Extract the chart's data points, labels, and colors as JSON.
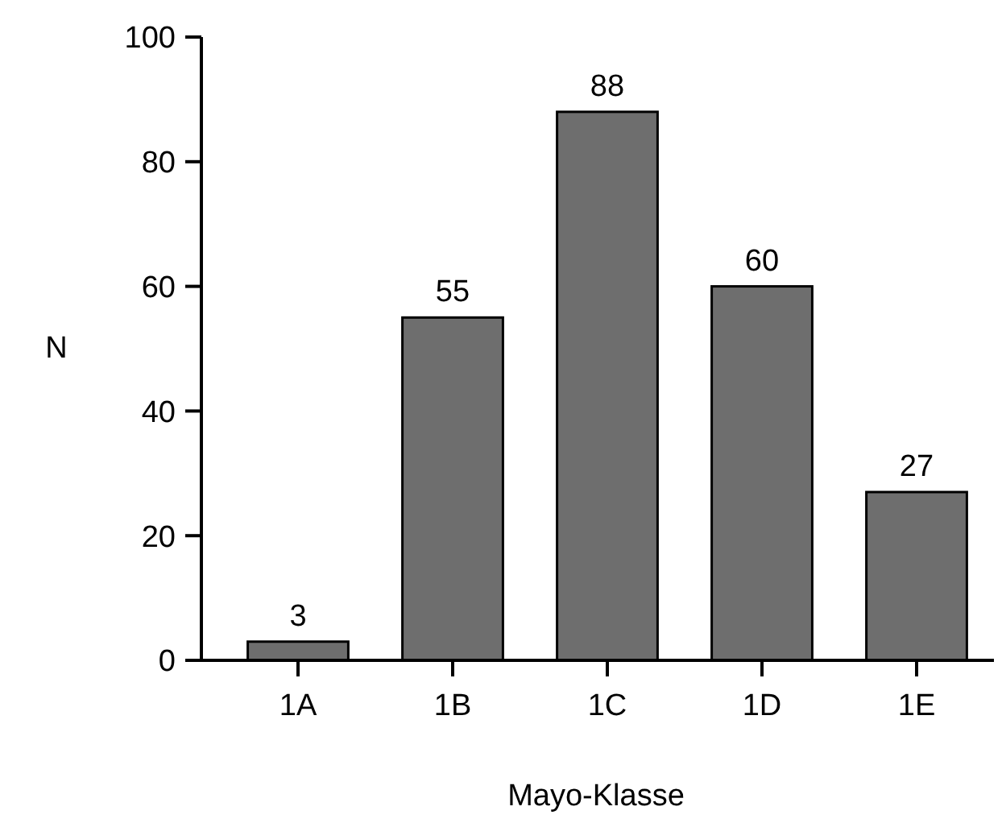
{
  "chart_data": {
    "type": "bar",
    "xlabel": "Mayo-Klasse",
    "ylabel": "N",
    "categories": [
      "1A",
      "1B",
      "1C",
      "1D",
      "1E"
    ],
    "values": [
      3,
      55,
      88,
      60,
      27
    ],
    "color": "#6e6e6e",
    "ylim": [
      0,
      100
    ],
    "yticks": [
      0,
      20,
      40,
      60,
      80,
      100
    ],
    "data_labels": true,
    "grid": false
  }
}
